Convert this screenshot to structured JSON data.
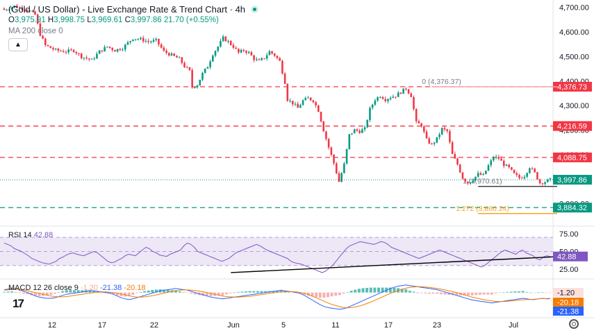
{
  "header": {
    "title": "(Gold / US Dollar) - Live Exchange Rate & Trend Chart · 4h",
    "ohlc": {
      "o_label": "O",
      "o": "3,975.91",
      "h_label": "H",
      "h": "3,998.75",
      "l_label": "L",
      "l": "3,969.61",
      "c_label": "C",
      "c": "3,997.86",
      "change": "21.70 (+0.55%)"
    },
    "ma_label": "MA 200 close 0"
  },
  "chart_data": [
    {
      "type": "candlestick",
      "title": "(Gold / US Dollar) - Live Exchange Rate & Trend Chart · 4h",
      "y_ticks": [
        "4,700.00",
        "4,600.00",
        "4,500.00",
        "4,400.00",
        "4,300.00",
        "4,200.00",
        "4,100.00",
        "3,900.00"
      ],
      "y_tick_values": [
        4700,
        4600,
        4500,
        4400,
        4300,
        4200,
        4100,
        3900
      ],
      "ylim": [
        3820,
        4730
      ],
      "x_ticks": [
        "12",
        "17",
        "22",
        "Jun",
        "5",
        "11",
        "17",
        "23",
        "Jul"
      ],
      "grid": false,
      "close_path": [
        [
          0,
          4690
        ],
        [
          4,
          4705
        ],
        [
          9,
          4690
        ],
        [
          12,
          4670
        ],
        [
          14,
          4590
        ],
        [
          16,
          4545
        ],
        [
          20,
          4525
        ],
        [
          24,
          4520
        ],
        [
          27,
          4525
        ],
        [
          30,
          4500
        ],
        [
          34,
          4485
        ],
        [
          37,
          4520
        ],
        [
          40,
          4540
        ],
        [
          43,
          4525
        ],
        [
          46,
          4535
        ],
        [
          50,
          4575
        ],
        [
          53,
          4570
        ],
        [
          56,
          4560
        ],
        [
          59,
          4565
        ],
        [
          62,
          4520
        ],
        [
          65,
          4505
        ],
        [
          68,
          4490
        ],
        [
          70,
          4460
        ],
        [
          72,
          4440
        ],
        [
          73,
          4375
        ],
        [
          75,
          4385
        ],
        [
          77,
          4430
        ],
        [
          79,
          4460
        ],
        [
          81,
          4510
        ],
        [
          83,
          4540
        ],
        [
          85,
          4575
        ],
        [
          87,
          4560
        ],
        [
          89,
          4540
        ],
        [
          91,
          4515
        ],
        [
          93,
          4525
        ],
        [
          95,
          4515
        ],
        [
          97,
          4490
        ],
        [
          99,
          4480
        ],
        [
          101,
          4495
        ],
        [
          103,
          4520
        ],
        [
          105,
          4505
        ],
        [
          107,
          4480
        ],
        [
          109,
          4395
        ],
        [
          110,
          4325
        ],
        [
          112,
          4310
        ],
        [
          114,
          4290
        ],
        [
          116,
          4320
        ],
        [
          118,
          4330
        ],
        [
          120,
          4320
        ],
        [
          122,
          4280
        ],
        [
          124,
          4200
        ],
        [
          126,
          4130
        ],
        [
          128,
          4065
        ],
        [
          130,
          3990
        ],
        [
          132,
          4060
        ],
        [
          134,
          4180
        ],
        [
          136,
          4200
        ],
        [
          138,
          4195
        ],
        [
          140,
          4205
        ],
        [
          142,
          4285
        ],
        [
          144,
          4325
        ],
        [
          146,
          4340
        ],
        [
          148,
          4325
        ],
        [
          150,
          4335
        ],
        [
          152,
          4340
        ],
        [
          154,
          4355
        ],
        [
          156,
          4370
        ],
        [
          158,
          4340
        ],
        [
          160,
          4230
        ],
        [
          162,
          4220
        ],
        [
          164,
          4160
        ],
        [
          166,
          4140
        ],
        [
          168,
          4165
        ],
        [
          170,
          4205
        ],
        [
          172,
          4195
        ],
        [
          174,
          4100
        ],
        [
          176,
          4060
        ],
        [
          178,
          4005
        ],
        [
          180,
          3985
        ],
        [
          182,
          4000
        ],
        [
          184,
          4020
        ],
        [
          186,
          4015
        ],
        [
          188,
          4055
        ],
        [
          190,
          4090
        ],
        [
          192,
          4085
        ],
        [
          194,
          4060
        ],
        [
          196,
          4045
        ],
        [
          198,
          4020
        ],
        [
          200,
          4005
        ],
        [
          202,
          4015
        ],
        [
          204,
          4050
        ],
        [
          206,
          4025
        ],
        [
          208,
          3985
        ],
        [
          210,
          3990
        ],
        [
          212,
          3997.86
        ]
      ],
      "n_candles": 213,
      "levels": [
        {
          "label": "4,376.73",
          "value": 4376.73,
          "color": "#f23645",
          "style": "dashed"
        },
        {
          "label": "4,216.59",
          "value": 4216.59,
          "color": "#f23645",
          "style": "dashed"
        },
        {
          "label": "4,088.75",
          "value": 4088.75,
          "color": "#f23645",
          "style": "dashed"
        },
        {
          "label": "3,997.86",
          "value": 3997.86,
          "color": "#089981",
          "style": "dotted"
        },
        {
          "label": "3,884.32",
          "value": 3884.32,
          "color": "#089981",
          "style": "dashed"
        }
      ],
      "fib": [
        {
          "label": "0 (4,376.37)",
          "value": 4376.37,
          "color": "#f7a6b0",
          "from": 160,
          "to": 212
        },
        {
          "label": "1 (3,970.61)",
          "value": 3970.61,
          "color": "#333333",
          "from": 178,
          "to": 212
        },
        {
          "label": "1.272 (3,860.24)",
          "value": 3860.24,
          "color": "#f5a623",
          "from": 178,
          "to": 212
        }
      ]
    },
    {
      "type": "line",
      "name": "RSI",
      "legend": "RSI 14",
      "value_label": "42.88",
      "y_ticks": [
        "75.00",
        "50.00",
        "25.00"
      ],
      "y_tick_values": [
        75,
        50,
        25
      ],
      "ylim": [
        15,
        82
      ],
      "band": [
        30,
        70
      ],
      "values": [
        62,
        60,
        58,
        54,
        52,
        50,
        47,
        44,
        40,
        38,
        36,
        34,
        33,
        32,
        34,
        36,
        40,
        42,
        45,
        47,
        48,
        46,
        45,
        44,
        46,
        48,
        50,
        48,
        44,
        40,
        36,
        34,
        35,
        38,
        40,
        44,
        46,
        45,
        44,
        48,
        52,
        56,
        54,
        50,
        48,
        45,
        44,
        43,
        46,
        48,
        50,
        52,
        58,
        62,
        60,
        56,
        50,
        48,
        46,
        44,
        42,
        40,
        38,
        36,
        38,
        40,
        44,
        48,
        50,
        52,
        54,
        56,
        58,
        60,
        58,
        55,
        52,
        50,
        48,
        46,
        44,
        42,
        40,
        36,
        34,
        33,
        32,
        30,
        28,
        26,
        24,
        22,
        20,
        22,
        26,
        30,
        36,
        42,
        48,
        54,
        58,
        60,
        62,
        64,
        63,
        62,
        61,
        60,
        62,
        64,
        63,
        60,
        56,
        54,
        52,
        50,
        48,
        46,
        44,
        42,
        40,
        42,
        44,
        46,
        48,
        50,
        52,
        50,
        48,
        46,
        44,
        42,
        40,
        38,
        36,
        34,
        32,
        30,
        28,
        30,
        34,
        38,
        42,
        46,
        50,
        52,
        50,
        48,
        46,
        50,
        52,
        48,
        46,
        44,
        40,
        38,
        42,
        44,
        42.88
      ],
      "trendline": {
        "from": [
          88,
          20
        ],
        "to": [
          212,
          43
        ]
      }
    },
    {
      "type": "line",
      "name": "MACD",
      "legend": "MACD 12 26 close 9",
      "values_labels": [
        "-1.20",
        "-21.38",
        "-20.18"
      ],
      "colors": [
        "#f7a98a",
        "#2962ff",
        "#f57c00"
      ],
      "ylim": [
        -80,
        40
      ],
      "macd": [
        10,
        12,
        14,
        12,
        8,
        4,
        0,
        -6,
        -12,
        -16,
        -18,
        -20,
        -20,
        -18,
        -14,
        -10,
        -6,
        -4,
        -2,
        0,
        2,
        4,
        6,
        6,
        4,
        2,
        0,
        -2,
        -6,
        -12,
        -18,
        -22,
        -24,
        -22,
        -18,
        -14,
        -10,
        -6,
        -2,
        2,
        6,
        8,
        10,
        12,
        14,
        12,
        10,
        8,
        4,
        0,
        -4,
        -8,
        -12,
        -16,
        -18,
        -20,
        -22,
        -20,
        -18,
        -16,
        -14,
        -12,
        -10,
        -8,
        -6,
        -4,
        -2,
        0,
        2,
        4,
        6,
        8,
        6,
        4,
        2,
        0,
        -4,
        -10,
        -18,
        -26,
        -34,
        -42,
        -48,
        -52,
        -54,
        -56,
        -58,
        -56,
        -52,
        -46,
        -40,
        -34,
        -28,
        -22,
        -16,
        -10,
        -4,
        2,
        8,
        14,
        18,
        22,
        24,
        26,
        24,
        22,
        20,
        18,
        16,
        14,
        12,
        10,
        6,
        2,
        -2,
        -6,
        -10,
        -14,
        -18,
        -22,
        -26,
        -28,
        -30,
        -32,
        -34,
        -36,
        -34,
        -32,
        -30,
        -28,
        -26,
        -24,
        -22,
        -20,
        -22,
        -24,
        -24,
        -22,
        -20,
        -22,
        -21.38
      ],
      "signal": [
        8,
        9,
        10,
        11,
        10,
        8,
        6,
        3,
        0,
        -3,
        -6,
        -9,
        -12,
        -14,
        -15,
        -15,
        -14,
        -12,
        -10,
        -8,
        -6,
        -4,
        -2,
        0,
        1,
        2,
        2,
        1,
        0,
        -2,
        -5,
        -8,
        -11,
        -14,
        -16,
        -16,
        -15,
        -13,
        -11,
        -8,
        -5,
        -2,
        1,
        4,
        6,
        8,
        9,
        9,
        8,
        7,
        5,
        3,
        0,
        -3,
        -6,
        -9,
        -12,
        -14,
        -15,
        -16,
        -16,
        -15,
        -14,
        -13,
        -11,
        -9,
        -7,
        -5,
        -3,
        -1,
        1,
        2,
        3,
        3,
        3,
        2,
        0,
        -3,
        -7,
        -12,
        -18,
        -24,
        -30,
        -36,
        -41,
        -45,
        -49,
        -52,
        -53,
        -52,
        -50,
        -47,
        -43,
        -38,
        -33,
        -27,
        -21,
        -15,
        -9,
        -3,
        2,
        7,
        11,
        15,
        18,
        19,
        20,
        20,
        19,
        18,
        16,
        14,
        12,
        9,
        6,
        3,
        0,
        -4,
        -8,
        -12,
        -16,
        -19,
        -22,
        -25,
        -27,
        -29,
        -31,
        -31,
        -31,
        -30,
        -29,
        -28,
        -26,
        -25,
        -24,
        -24,
        -23,
        -22,
        -21,
        -21,
        -20.18
      ]
    }
  ],
  "axis_labels": {
    "price_ticks": [
      "4,700.00",
      "4,600.00",
      "4,500.00",
      "4,400.00",
      "4,300.00",
      "4,200.00",
      "4,100.00",
      "3,900.00"
    ],
    "time_ticks": [
      "12",
      "17",
      "22",
      "Jun",
      "5",
      "11",
      "17",
      "23",
      "Jul"
    ]
  },
  "colors": {
    "up": "#089981",
    "down": "#f23645",
    "rsi": "#7e57c2",
    "rsi_band": "#ede7f6",
    "macd": "#2962ff",
    "signal": "#f57c00",
    "hist_pos": "#26a69a",
    "hist_neg": "#ef9a9a"
  },
  "icons": {
    "live": "live-dot-icon",
    "collapse": "chevron-up-icon",
    "logo": "tradingview-logo-icon",
    "settings": "gear-icon"
  }
}
